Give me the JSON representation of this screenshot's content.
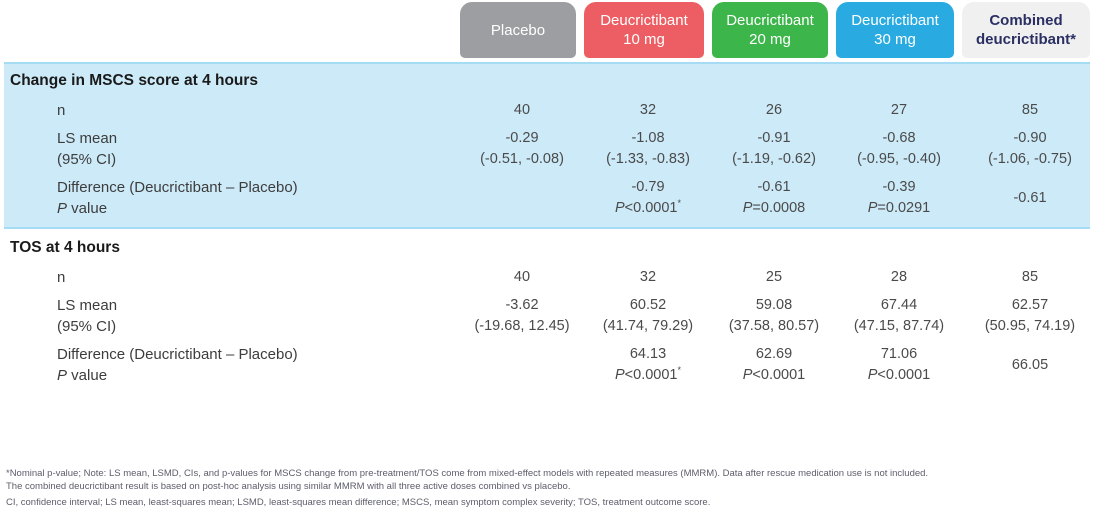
{
  "theme": {
    "band_background": "#cdeaf8",
    "band_border": "#a5dcf3",
    "page_background": "#ffffff"
  },
  "columns": [
    {
      "label_line1": "Placebo",
      "label_line2": "",
      "bg": "#9c9ea1",
      "fg": "#ffffff"
    },
    {
      "label_line1": "Deucrictibant",
      "label_line2": "10 mg",
      "bg": "#ec5e63",
      "fg": "#ffffff"
    },
    {
      "label_line1": "Deucrictibant",
      "label_line2": "20 mg",
      "bg": "#3cb54a",
      "fg": "#ffffff"
    },
    {
      "label_line1": "Deucrictibant",
      "label_line2": "30 mg",
      "bg": "#29abe2",
      "fg": "#ffffff"
    },
    {
      "label_line1": "Combined",
      "label_line2": "deucrictibant*",
      "bg": "#f0f0f1",
      "fg": "#2b3063"
    }
  ],
  "sections": [
    {
      "title": "Change in MSCS score at 4 hours",
      "n": {
        "label": "n",
        "values": [
          "40",
          "32",
          "26",
          "27",
          "85"
        ]
      },
      "ls": {
        "label1": "LS mean",
        "label2": "(95% CI)",
        "values": [
          "-0.29",
          "-1.08",
          "-0.91",
          "-0.68",
          "-0.90"
        ],
        "cis": [
          "(-0.51, -0.08)",
          "(-1.33, -0.83)",
          "(-1.19, -0.62)",
          "(-0.95, -0.40)",
          "(-1.06, -0.75)"
        ]
      },
      "diff": {
        "label1": "Difference (Deucrictibant – Placebo)",
        "p_italic": "P",
        "p_rest": " value",
        "values": [
          "-0.79",
          "-0.61",
          "-0.39"
        ],
        "ps": [
          "<0.0001",
          "=0.0008",
          "=0.0291"
        ],
        "sups": [
          "*",
          "",
          ""
        ],
        "combined": "-0.61"
      }
    },
    {
      "title": "TOS at 4 hours",
      "n": {
        "label": "n",
        "values": [
          "40",
          "32",
          "25",
          "28",
          "85"
        ]
      },
      "ls": {
        "label1": "LS mean",
        "label2": "(95% CI)",
        "values": [
          "-3.62",
          "60.52",
          "59.08",
          "67.44",
          "62.57"
        ],
        "cis": [
          "(-19.68, 12.45)",
          "(41.74, 79.29)",
          "(37.58, 80.57)",
          "(47.15, 87.74)",
          "(50.95, 74.19)"
        ]
      },
      "diff": {
        "label1": "Difference (Deucrictibant – Placebo)",
        "p_italic": "P",
        "p_rest": " value",
        "values": [
          "64.13",
          "62.69",
          "71.06"
        ],
        "ps": [
          "<0.0001",
          "<0.0001",
          "<0.0001"
        ],
        "sups": [
          "*",
          "",
          ""
        ],
        "combined": "66.05"
      }
    }
  ],
  "footnotes": [
    "*Nominal p-value; Note: LS mean, LSMD, CIs, and p-values for MSCS change from pre-treatment/TOS come from mixed-effect models with repeated measures (MMRM). Data after rescue medication use is not included.",
    "The combined deucrictibant result is based on post-hoc analysis using similar MMRM with all three active doses combined vs placebo.",
    "CI, confidence interval; LS mean, least-squares mean; LSMD, least-squares mean difference; MSCS, mean symptom complex severity; TOS, treatment outcome score."
  ]
}
